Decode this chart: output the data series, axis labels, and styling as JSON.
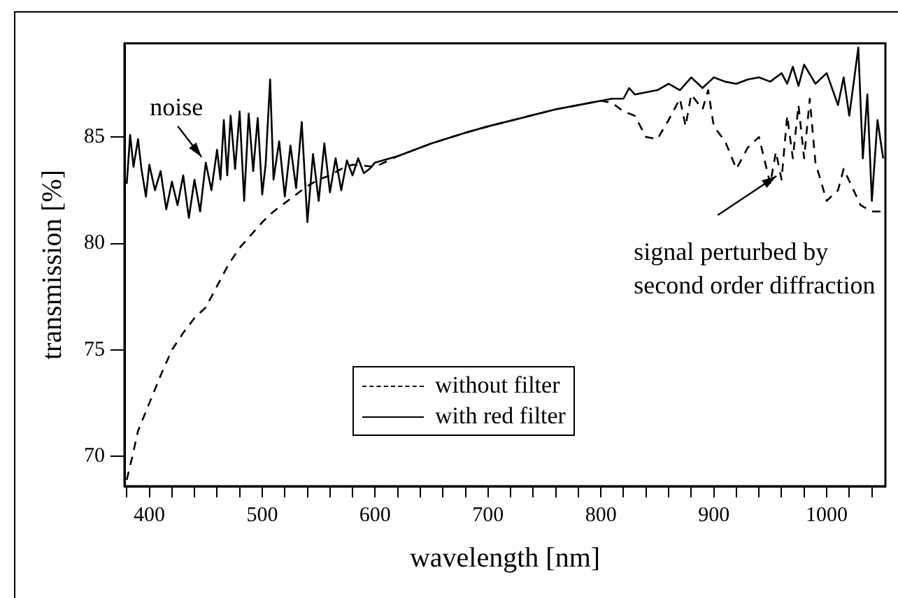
{
  "chart_data": {
    "type": "line",
    "xlabel": "wavelength [nm]",
    "ylabel": "transmission [%]",
    "xlim": [
      378,
      1052
    ],
    "ylim": [
      68.6,
      89.4
    ],
    "xticks": [
      {
        "value": 380,
        "label": null
      },
      400,
      {
        "value": 420,
        "label": null
      },
      {
        "value": 440,
        "label": null
      },
      {
        "value": 460,
        "label": null
      },
      {
        "value": 480,
        "label": null
      },
      500,
      {
        "value": 520,
        "label": null
      },
      {
        "value": 540,
        "label": null
      },
      {
        "value": 560,
        "label": null
      },
      {
        "value": 580,
        "label": null
      },
      600,
      {
        "value": 620,
        "label": null
      },
      {
        "value": 640,
        "label": null
      },
      {
        "value": 660,
        "label": null
      },
      {
        "value": 680,
        "label": null
      },
      700,
      {
        "value": 720,
        "label": null
      },
      {
        "value": 740,
        "label": null
      },
      {
        "value": 760,
        "label": null
      },
      {
        "value": 780,
        "label": null
      },
      800,
      {
        "value": 820,
        "label": null
      },
      {
        "value": 840,
        "label": null
      },
      {
        "value": 860,
        "label": null
      },
      {
        "value": 880,
        "label": null
      },
      900,
      {
        "value": 920,
        "label": null
      },
      {
        "value": 940,
        "label": null
      },
      {
        "value": 960,
        "label": null
      },
      {
        "value": 980,
        "label": null
      },
      1000,
      {
        "value": 1020,
        "label": null
      },
      {
        "value": 1040,
        "label": null
      }
    ],
    "yticks": [
      70,
      75,
      80,
      85
    ],
    "grid": false,
    "legend": "bottom",
    "marker": "none",
    "annotations": [
      {
        "text": "noise",
        "x": 450,
        "y": 83.8
      },
      {
        "text": "signal perturbed by\nsecond order diffraction",
        "x": 958,
        "y": 83.3
      }
    ],
    "series": [
      {
        "name": "without filter",
        "color": "#000000",
        "line_style": "dashed",
        "x": [
          380,
          385,
          390,
          400,
          410,
          420,
          430,
          440,
          450,
          460,
          470,
          480,
          490,
          500,
          510,
          520,
          530,
          540,
          550,
          560,
          570,
          580,
          600,
          620,
          650,
          680,
          700,
          730,
          760,
          780,
          800,
          810,
          820,
          830,
          840,
          850,
          860,
          870,
          875,
          880,
          890,
          895,
          900,
          910,
          920,
          930,
          940,
          950,
          955,
          960,
          965,
          970,
          975,
          980,
          985,
          990,
          1000,
          1010,
          1015,
          1030,
          1040,
          1050
        ],
        "values": [
          68.9,
          70.0,
          71.2,
          72.5,
          73.8,
          75.0,
          75.8,
          76.5,
          77.0,
          78.0,
          79.0,
          79.8,
          80.4,
          81.0,
          81.5,
          81.9,
          82.3,
          82.7,
          83.0,
          83.2,
          83.5,
          83.7,
          83.6,
          84.1,
          84.7,
          85.2,
          85.5,
          85.9,
          86.3,
          86.5,
          86.7,
          86.6,
          86.2,
          86.0,
          85.0,
          84.9,
          85.8,
          86.8,
          85.5,
          87.0,
          86.3,
          87.2,
          85.5,
          84.8,
          83.5,
          84.5,
          85.0,
          82.8,
          84.3,
          83.0,
          86.0,
          84.0,
          86.5,
          84.0,
          86.8,
          83.8,
          82.0,
          82.5,
          83.5,
          81.8,
          81.5,
          81.5
        ]
      },
      {
        "name": "with red filter",
        "color": "#000000",
        "line_style": "solid",
        "x": [
          380,
          383,
          386,
          390,
          393,
          397,
          400,
          405,
          410,
          415,
          420,
          425,
          430,
          435,
          440,
          445,
          450,
          455,
          460,
          463,
          466,
          469,
          472,
          476,
          480,
          484,
          488,
          492,
          496,
          500,
          503,
          507,
          510,
          515,
          520,
          525,
          530,
          535,
          540,
          545,
          550,
          555,
          560,
          565,
          570,
          575,
          580,
          585,
          590,
          595,
          600,
          620,
          650,
          680,
          700,
          730,
          760,
          780,
          800,
          810,
          820,
          825,
          830,
          850,
          860,
          870,
          880,
          890,
          900,
          910,
          920,
          930,
          940,
          950,
          960,
          965,
          970,
          975,
          980,
          990,
          1000,
          1010,
          1015,
          1020,
          1028,
          1032,
          1036,
          1040,
          1045,
          1050
        ],
        "values": [
          82.8,
          85.1,
          83.6,
          84.9,
          83.5,
          82.2,
          83.7,
          82.5,
          83.4,
          81.6,
          82.9,
          81.8,
          83.2,
          81.2,
          83.0,
          81.5,
          83.8,
          82.5,
          84.4,
          83.0,
          85.8,
          83.2,
          86.0,
          83.5,
          86.2,
          82.0,
          86.1,
          83.4,
          85.9,
          82.3,
          83.7,
          87.7,
          83.0,
          84.8,
          82.2,
          84.6,
          82.6,
          85.7,
          81.0,
          84.2,
          82.0,
          84.7,
          82.4,
          84.0,
          82.5,
          83.9,
          83.2,
          84.0,
          83.3,
          83.5,
          83.8,
          84.1,
          84.7,
          85.2,
          85.5,
          85.9,
          86.3,
          86.5,
          86.7,
          86.8,
          86.8,
          87.3,
          87.0,
          87.2,
          87.5,
          87.2,
          87.8,
          87.3,
          87.8,
          87.6,
          87.5,
          87.7,
          87.8,
          87.6,
          88.0,
          87.5,
          88.3,
          87.4,
          88.4,
          87.5,
          88.0,
          86.5,
          87.8,
          86.0,
          89.2,
          84.0,
          87.0,
          82.0,
          85.8,
          84.0
        ]
      }
    ]
  }
}
